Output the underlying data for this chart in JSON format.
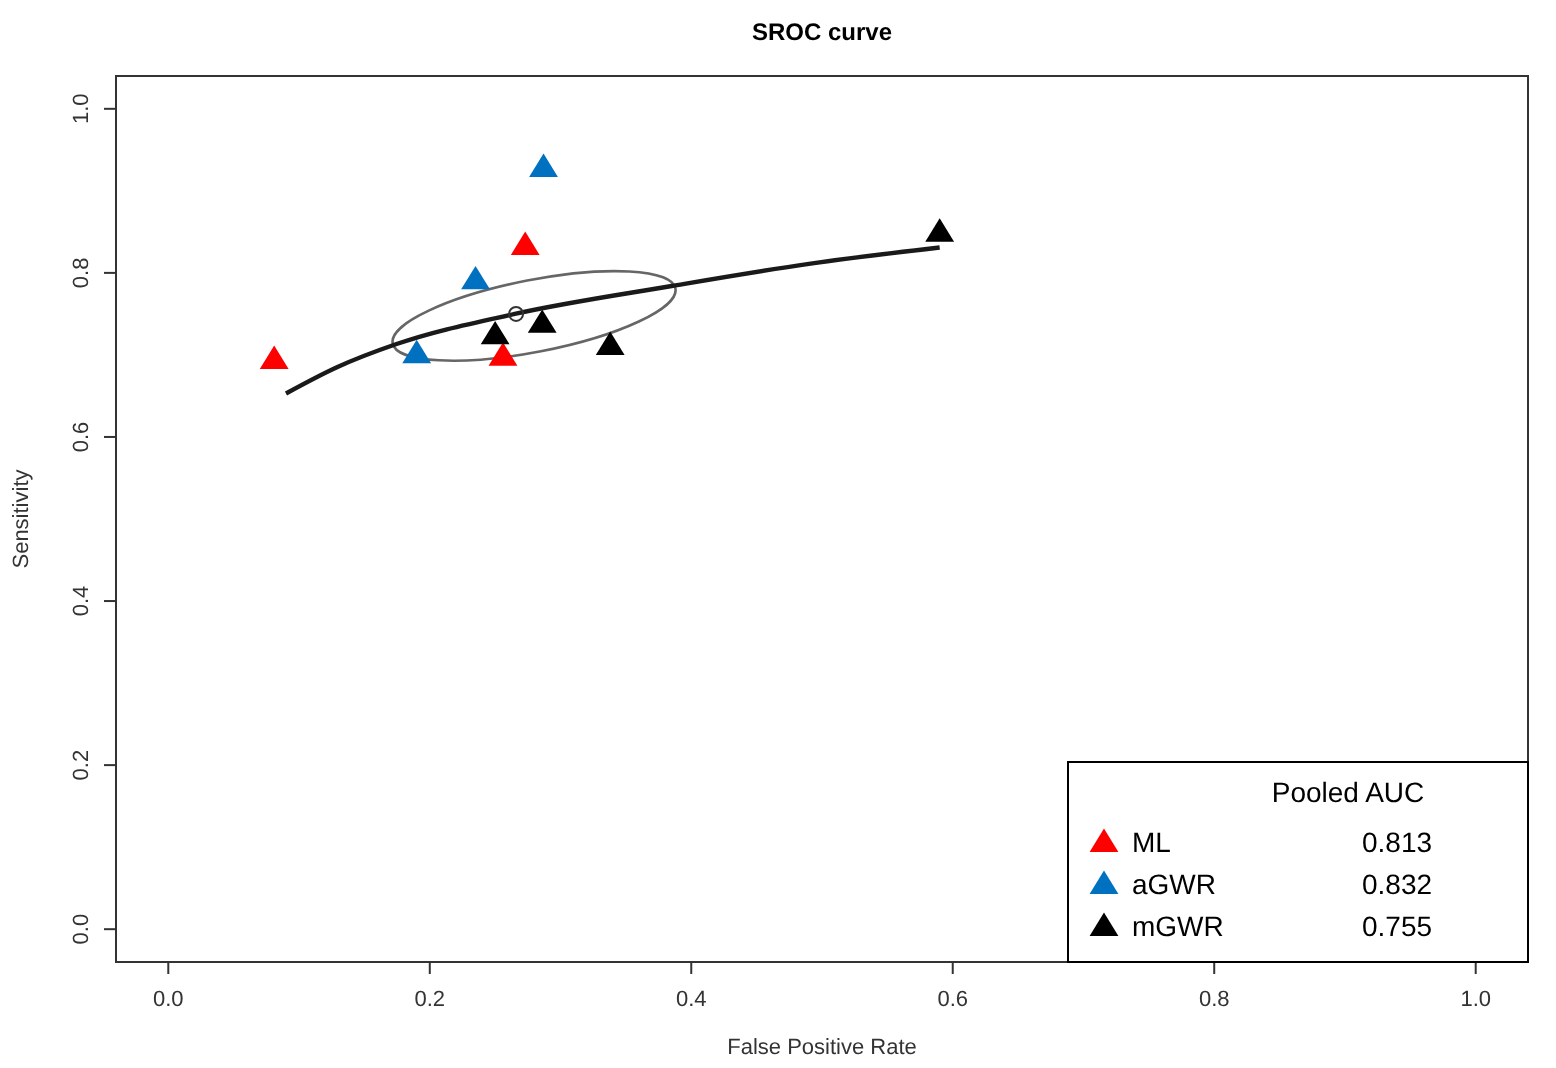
{
  "chart_data": {
    "type": "scatter",
    "title": "SROC curve",
    "xlabel": "False Positive Rate",
    "ylabel": "Sensitivity",
    "legend_title": "Pooled AUC",
    "legend": "bottom right",
    "marker": "triangle",
    "xlim": [
      -0.04,
      1.04
    ],
    "ylim": [
      -0.04,
      1.04
    ],
    "xticks": [
      {
        "value": 0,
        "label": "0.0"
      },
      {
        "value": 0.2,
        "label": "0.2"
      },
      {
        "value": 0.4,
        "label": "0.4"
      },
      {
        "value": 0.6,
        "label": "0.6"
      },
      {
        "value": 0.8,
        "label": "0.8"
      },
      {
        "value": 1,
        "label": "1.0"
      }
    ],
    "yticks": [
      {
        "value": 0,
        "label": "0.0"
      },
      {
        "value": 0.2,
        "label": "0.2"
      },
      {
        "value": 0.4,
        "label": "0.4"
      },
      {
        "value": 0.6,
        "label": "0.6"
      },
      {
        "value": 0.8,
        "label": "0.8"
      },
      {
        "value": 1,
        "label": "1.0"
      }
    ],
    "annotations": [
      "0.813",
      "0.832",
      "0.755"
    ],
    "series": [
      {
        "name": "ML",
        "color": "#ff0000",
        "x": [
          0.081,
          0.273,
          0.256
        ],
        "values": [
          0.695,
          0.834,
          0.699
        ]
      },
      {
        "name": "aGWR",
        "color": "#0070c0",
        "x": [
          0.235,
          0.19,
          0.287
        ],
        "values": [
          0.792,
          0.702,
          0.929
        ]
      },
      {
        "name": "mGWR",
        "color": "#000000",
        "x": [
          0.25,
          0.286,
          0.338,
          0.59
        ],
        "values": [
          0.725,
          0.739,
          0.712,
          0.85
        ]
      },
      {
        "type": "line",
        "color": "#1a1a1a",
        "marker": "none",
        "x": [
          0.09,
          0.129,
          0.174,
          0.265,
          0.385,
          0.49,
          0.59
        ],
        "values": [
          0.653,
          0.685,
          0.713,
          0.75,
          0.784,
          0.811,
          0.831
        ]
      },
      {
        "type": "scatter",
        "color": "#333333",
        "marker": "circle",
        "x": [
          0.266
        ],
        "values": [
          0.75
        ]
      }
    ]
  }
}
